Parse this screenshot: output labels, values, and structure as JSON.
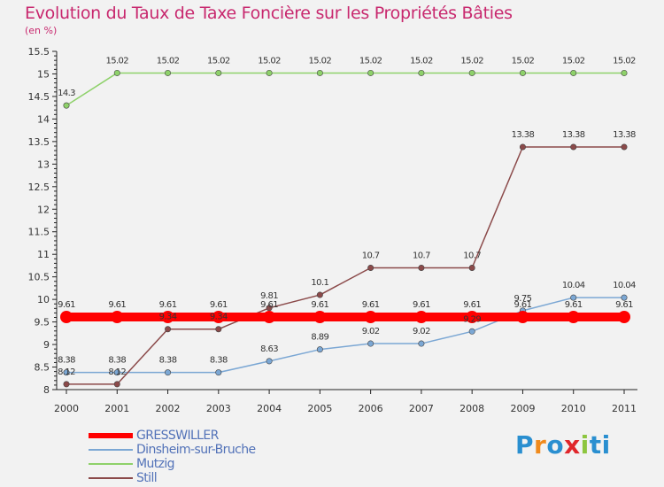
{
  "title": "Evolution du Taux de Taxe Foncière sur les Propriétés Bâties",
  "subtitle": "(en %)",
  "logo": {
    "letters": [
      "P",
      "r",
      "o",
      "x",
      "i",
      "t",
      "i"
    ],
    "colors": [
      "#2a8fd0",
      "#f08a1c",
      "#2a8fd0",
      "#e0262b",
      "#8dc63f",
      "#2a8fd0",
      "#2a8fd0"
    ]
  },
  "chart_data": {
    "type": "line",
    "title": "Evolution du Taux de Taxe Foncière sur les Propriétés Bâties",
    "ylabel": "(en %)",
    "xlabel": "",
    "ylim": [
      8,
      15.5
    ],
    "yticks": [
      "8",
      "8.5",
      "9",
      "9.5",
      "10",
      "10.5",
      "11",
      "11.5",
      "12",
      "12.5",
      "13",
      "13.5",
      "14",
      "14.5",
      "15",
      "15.5"
    ],
    "categories": [
      "2000",
      "2001",
      "2002",
      "2003",
      "2004",
      "2005",
      "2006",
      "2007",
      "2008",
      "2009",
      "2010",
      "2011"
    ],
    "grid": false,
    "series": [
      {
        "name": "GRESSWILLER",
        "color": "#ff0000",
        "values": [
          9.61,
          9.61,
          9.61,
          9.61,
          9.61,
          9.61,
          9.61,
          9.61,
          9.61,
          9.61,
          9.61,
          9.61
        ],
        "labels": [
          "9.61",
          "9.61",
          "9.61",
          "9.61",
          "9.61",
          "9.61",
          "9.61",
          "9.61",
          "9.61",
          "9.61",
          "9.61",
          "9.61"
        ]
      },
      {
        "name": "Dinsheim-sur-Bruche",
        "color": "#7ba7d4",
        "values": [
          8.38,
          8.38,
          8.38,
          8.38,
          8.63,
          8.89,
          9.02,
          9.02,
          9.29,
          9.75,
          10.04,
          10.04
        ],
        "labels": [
          "8.38",
          "8.38",
          "8.38",
          "8.38",
          "8.63",
          "8.89",
          "9.02",
          "9.02",
          "9.29",
          "9.75",
          "10.04",
          "10.04"
        ]
      },
      {
        "name": "Mutzig",
        "color": "#8ed16a",
        "values": [
          14.3,
          15.02,
          15.02,
          15.02,
          15.02,
          15.02,
          15.02,
          15.02,
          15.02,
          15.02,
          15.02,
          15.02
        ],
        "labels": [
          "14.3",
          "15.02",
          "15.02",
          "15.02",
          "15.02",
          "15.02",
          "15.02",
          "15.02",
          "15.02",
          "15.02",
          "15.02",
          "15.02"
        ]
      },
      {
        "name": "Still",
        "color": "#8b4a4a",
        "values": [
          8.12,
          8.12,
          9.34,
          9.34,
          9.81,
          10.1,
          10.7,
          10.7,
          10.7,
          13.38,
          13.38,
          13.38
        ],
        "labels": [
          "8.12",
          "8.12",
          "9.34",
          "9.34",
          "9.81",
          "10.1",
          "10.7",
          "10.7",
          "10.7",
          "13.38",
          "13.38",
          "13.38"
        ]
      }
    ]
  }
}
